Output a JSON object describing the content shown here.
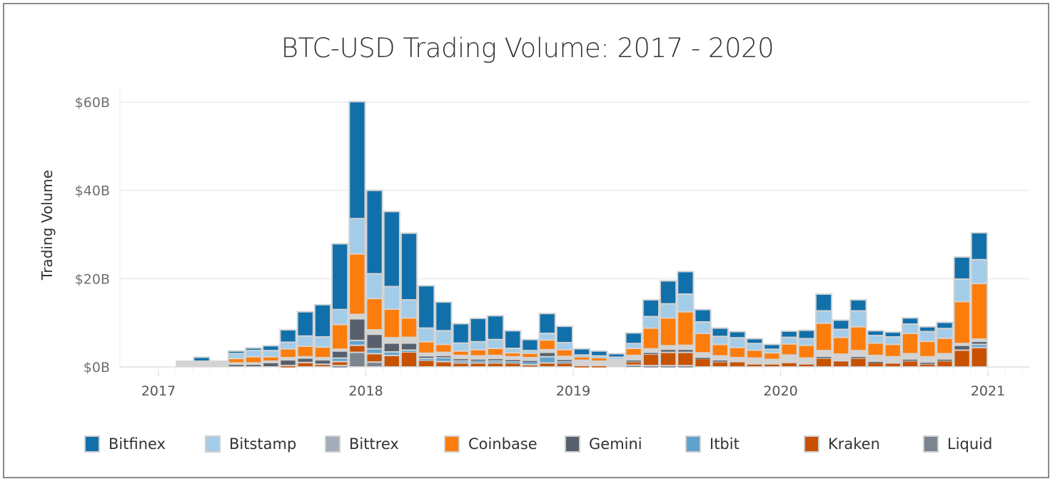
{
  "chart_data": {
    "type": "bar",
    "stacked": true,
    "title": "BTC-USD Trading Volume: 2017 - 2020",
    "xlabel": "",
    "ylabel": "Trading Volume",
    "ylim": [
      0,
      60
    ],
    "y_unit": "$B",
    "yticks": [
      {
        "value": 0,
        "label": "$0B"
      },
      {
        "value": 20,
        "label": "$20B"
      },
      {
        "value": 40,
        "label": "$40B"
      },
      {
        "value": 60,
        "label": "$60B"
      }
    ],
    "xticks": [
      {
        "value": 0,
        "label": "2017"
      },
      {
        "value": 12,
        "label": "2018"
      },
      {
        "value": 24,
        "label": "2019"
      },
      {
        "value": 36,
        "label": "2020"
      },
      {
        "value": 48,
        "label": "2021"
      }
    ],
    "x_unit": "months since Jan 2017",
    "grid": true,
    "legend_position": "bottom",
    "series_order_bottom_to_top": [
      "Liquid",
      "Kraken",
      "Itbit",
      "Gemini",
      "Bittrex",
      "Coinbase",
      "Bitstamp",
      "Bitfinex"
    ],
    "series": [
      {
        "name": "Bitfinex",
        "color": "#1170aa"
      },
      {
        "name": "Bitstamp",
        "color": "#a3cce9"
      },
      {
        "name": "Bittrex",
        "color": "#a3acb9"
      },
      {
        "name": "Coinbase",
        "color": "#fc7d0b"
      },
      {
        "name": "Gemini",
        "color": "#57606c"
      },
      {
        "name": "Itbit",
        "color": "#5fa2ce"
      },
      {
        "name": "Kraken",
        "color": "#c85200"
      },
      {
        "name": "Liquid",
        "color": "#7b848f"
      }
    ],
    "other_color": "#d3d3d3",
    "months": [
      {
        "m": 1,
        "Other": 1.3
      },
      {
        "m": 2,
        "Other": 1.3,
        "Bitfinex": 0.9
      },
      {
        "m": 3,
        "Other": 1.3
      },
      {
        "m": 4,
        "Gemini": 0.6,
        "Coinbase": 1.0,
        "Bitstamp": 1.2,
        "Bitfinex": 0.5,
        "Other": 0.3
      },
      {
        "m": 5,
        "Gemini": 0.6,
        "Coinbase": 1.4,
        "Bitstamp": 1.5,
        "Bitfinex": 0.5,
        "Other": 0.3
      },
      {
        "m": 6,
        "Gemini": 1.0,
        "Coinbase": 1.0,
        "Bitstamp": 1.4,
        "Bitfinex": 1.1,
        "Other": 0.3
      },
      {
        "m": 7,
        "Kraken": 0.3,
        "Gemini": 1.3,
        "Coinbase": 2.0,
        "Bitstamp": 1.5,
        "Bitfinex": 2.8,
        "Other": 0.5
      },
      {
        "m": 8,
        "Kraken": 1.0,
        "Gemini": 1.0,
        "Coinbase": 2.4,
        "Bitstamp": 2.3,
        "Bitfinex": 5.5,
        "Other": 0.3
      },
      {
        "m": 9,
        "Kraken": 0.6,
        "Gemini": 1.0,
        "Coinbase": 2.4,
        "Bitstamp": 2.3,
        "Bitfinex": 7.3,
        "Other": 0.5
      },
      {
        "m": 10,
        "Liquid": 0.3,
        "Kraken": 0.9,
        "Itbit": 0.8,
        "Gemini": 1.6,
        "Coinbase": 5.6,
        "Bitstamp": 3.4,
        "Bitfinex": 14.9,
        "Other": 0.4
      },
      {
        "m": 11,
        "Liquid": 3.3,
        "Kraken": 1.6,
        "Itbit": 1.1,
        "Gemini": 4.9,
        "Coinbase": 13.7,
        "Bitstamp": 8.0,
        "Bitfinex": 26.5,
        "Other": 1.0
      },
      {
        "m": 12,
        "Liquid": 1.1,
        "Kraken": 1.9,
        "Itbit": 1.1,
        "Gemini": 3.3,
        "Coinbase": 7.1,
        "Bitstamp": 5.6,
        "Bitfinex": 18.9,
        "Other": 1.0
      },
      {
        "m": 13,
        "Kraken": 2.6,
        "Itbit": 0.8,
        "Gemini": 2.0,
        "Coinbase": 6.5,
        "Bitstamp": 5.1,
        "Bitfinex": 17.0,
        "Other": 1.2
      },
      {
        "m": 14,
        "Kraken": 3.4,
        "Itbit": 0.4,
        "Gemini": 1.6,
        "Coinbase": 4.4,
        "Bitstamp": 4.1,
        "Bitfinex": 15.1,
        "Other": 1.3
      },
      {
        "m": 15,
        "Kraken": 1.5,
        "Itbit": 0.4,
        "Gemini": 0.6,
        "Coinbase": 2.6,
        "Bitstamp": 3.1,
        "Bitfinex": 9.6,
        "Other": 0.6
      },
      {
        "m": 16,
        "Kraken": 1.2,
        "Itbit": 0.9,
        "Gemini": 0.5,
        "Coinbase": 1.8,
        "Bitstamp": 3.1,
        "Bitfinex": 6.5,
        "Other": 0.7
      },
      {
        "m": 17,
        "Kraken": 0.9,
        "Itbit": 0.5,
        "Gemini": 0.5,
        "Coinbase": 1.0,
        "Bitstamp": 1.8,
        "Bitfinex": 4.4,
        "Other": 0.7
      },
      {
        "m": 18,
        "Kraken": 0.9,
        "Itbit": 0.5,
        "Gemini": 0.4,
        "Coinbase": 1.4,
        "Bitstamp": 1.8,
        "Bitfinex": 5.3,
        "Other": 0.7
      },
      {
        "m": 19,
        "Kraken": 0.9,
        "Itbit": 0.5,
        "Gemini": 0.5,
        "Coinbase": 1.6,
        "Bitstamp": 2.0,
        "Bitfinex": 5.4,
        "Other": 0.7
      },
      {
        "m": 20,
        "Kraken": 0.9,
        "Itbit": 0.4,
        "Gemini": 0.4,
        "Coinbase": 0.9,
        "Bitstamp": 1.0,
        "Bitfinex": 4.0,
        "Other": 0.6
      },
      {
        "m": 21,
        "Kraken": 0.5,
        "Itbit": 0.7,
        "Gemini": 0.3,
        "Coinbase": 1.0,
        "Bitstamp": 0.6,
        "Bitfinex": 2.5,
        "Other": 0.6
      },
      {
        "m": 22,
        "Kraken": 0.9,
        "Itbit": 1.4,
        "Gemini": 1.0,
        "Coinbase": 2.2,
        "Bitstamp": 1.5,
        "Bitfinex": 4.5,
        "Other": 0.6
      },
      {
        "m": 23,
        "Kraken": 0.9,
        "Itbit": 0.4,
        "Gemini": 0.4,
        "Coinbase": 1.5,
        "Bitstamp": 1.6,
        "Bitfinex": 3.7,
        "Other": 0.7
      },
      {
        "m": 24,
        "Kraken": 0.3,
        "Coinbase": 0.8,
        "Bitstamp": 0.4,
        "Bitfinex": 1.4,
        "Other": 1.2
      },
      {
        "m": 25,
        "Kraken": 0.3,
        "Coinbase": 0.8,
        "Bitstamp": 0.4,
        "Bitfinex": 1.1,
        "Other": 1.0
      },
      {
        "m": 26,
        "Bitstamp": 0.4,
        "Bitfinex": 0.8,
        "Other": 1.8
      },
      {
        "m": 27,
        "Liquid": 0.4,
        "Kraken": 0.8,
        "Gemini": 0.4,
        "Coinbase": 1.6,
        "Bitstamp": 1.1,
        "Bitfinex": 2.4,
        "Other": 1.0
      },
      {
        "m": 28,
        "Liquid": 0.3,
        "Kraken": 2.6,
        "Gemini": 0.4,
        "Coinbase": 4.7,
        "Bitstamp": 2.6,
        "Bitfinex": 3.8,
        "Other": 0.8
      },
      {
        "m": 29,
        "Liquid": 0.3,
        "Kraken": 3.0,
        "Gemini": 0.7,
        "Coinbase": 6.3,
        "Bitstamp": 3.2,
        "Bitfinex": 5.2,
        "Other": 0.8
      },
      {
        "m": 30,
        "Liquid": 0.3,
        "Kraken": 3.0,
        "Gemini": 0.7,
        "Coinbase": 7.6,
        "Bitstamp": 4.0,
        "Bitfinex": 5.1,
        "Other": 0.9
      },
      {
        "m": 31,
        "Kraken": 1.9,
        "Gemini": 0.3,
        "Coinbase": 4.4,
        "Bitstamp": 2.6,
        "Bitfinex": 2.8,
        "Other": 1.0
      },
      {
        "m": 32,
        "Kraken": 1.2,
        "Gemini": 0.4,
        "Coinbase": 2.6,
        "Bitstamp": 1.8,
        "Bitfinex": 1.9,
        "Other": 0.9
      },
      {
        "m": 33,
        "Kraken": 1.2,
        "Coinbase": 2.3,
        "Bitstamp": 2.2,
        "Bitfinex": 1.4,
        "Other": 0.9
      },
      {
        "m": 34,
        "Kraken": 0.7,
        "Coinbase": 1.8,
        "Bitstamp": 1.5,
        "Bitfinex": 1.1,
        "Other": 1.3
      },
      {
        "m": 35,
        "Kraken": 0.7,
        "Coinbase": 1.5,
        "Bitstamp": 0.8,
        "Bitfinex": 1.1,
        "Other": 1.0
      },
      {
        "m": 36,
        "Kraken": 1.0,
        "Coinbase": 2.5,
        "Bitstamp": 1.5,
        "Bitfinex": 1.4,
        "Other": 1.7
      },
      {
        "m": 37,
        "Kraken": 0.7,
        "Coinbase": 2.9,
        "Bitstamp": 1.5,
        "Bitfinex": 1.9,
        "Other": 1.3
      },
      {
        "m": 38,
        "Kraken": 2.0,
        "Gemini": 0.4,
        "Coinbase": 6.2,
        "Bitstamp": 2.8,
        "Bitfinex": 3.8,
        "Other": 1.3
      },
      {
        "m": 39,
        "Kraken": 1.4,
        "Coinbase": 3.8,
        "Bitstamp": 1.8,
        "Bitfinex": 2.1,
        "Other": 1.5
      },
      {
        "m": 40,
        "Kraken": 2.0,
        "Gemini": 0.4,
        "Coinbase": 5.4,
        "Bitstamp": 3.6,
        "Bitfinex": 2.5,
        "Other": 1.3
      },
      {
        "m": 41,
        "Kraken": 1.0,
        "Gemini": 0.3,
        "Coinbase": 2.8,
        "Bitstamp": 1.7,
        "Bitfinex": 1.1,
        "Other": 1.3
      },
      {
        "m": 42,
        "Kraken": 0.9,
        "Coinbase": 2.8,
        "Bitstamp": 1.7,
        "Bitfinex": 1.1,
        "Other": 1.4
      },
      {
        "m": 43,
        "Kraken": 1.4,
        "Gemini": 0.4,
        "Coinbase": 4.6,
        "Bitstamp": 2.1,
        "Bitfinex": 1.4,
        "Other": 1.2
      },
      {
        "m": 44,
        "Kraken": 0.7,
        "Gemini": 0.4,
        "Coinbase": 3.5,
        "Bitstamp": 2.2,
        "Bitfinex": 1.1,
        "Other": 1.2
      },
      {
        "m": 45,
        "Kraken": 1.4,
        "Gemini": 0.4,
        "Coinbase": 3.5,
        "Bitstamp": 2.2,
        "Bitfinex": 1.4,
        "Other": 1.2
      },
      {
        "m": 46,
        "Kraken": 3.8,
        "Gemini": 1.1,
        "Coinbase": 9.5,
        "Bitstamp": 5.1,
        "Bitfinex": 5.0,
        "Other": 0.4
      },
      {
        "m": 47,
        "Kraken": 4.4,
        "Itbit": 0.7,
        "Gemini": 0.7,
        "Coinbase": 12.6,
        "Bitstamp": 5.4,
        "Bitfinex": 6.1,
        "Other": 0.5
      }
    ]
  },
  "legend": {
    "items": [
      {
        "label": "Bitfinex",
        "color": "#1170aa"
      },
      {
        "label": "Bitstamp",
        "color": "#a3cce9"
      },
      {
        "label": "Bittrex",
        "color": "#a3acb9"
      },
      {
        "label": "Coinbase",
        "color": "#fc7d0b"
      },
      {
        "label": "Gemini",
        "color": "#57606c"
      },
      {
        "label": "Itbit",
        "color": "#5fa2ce"
      },
      {
        "label": "Kraken",
        "color": "#c85200"
      },
      {
        "label": "Liquid",
        "color": "#7b848f"
      }
    ]
  }
}
